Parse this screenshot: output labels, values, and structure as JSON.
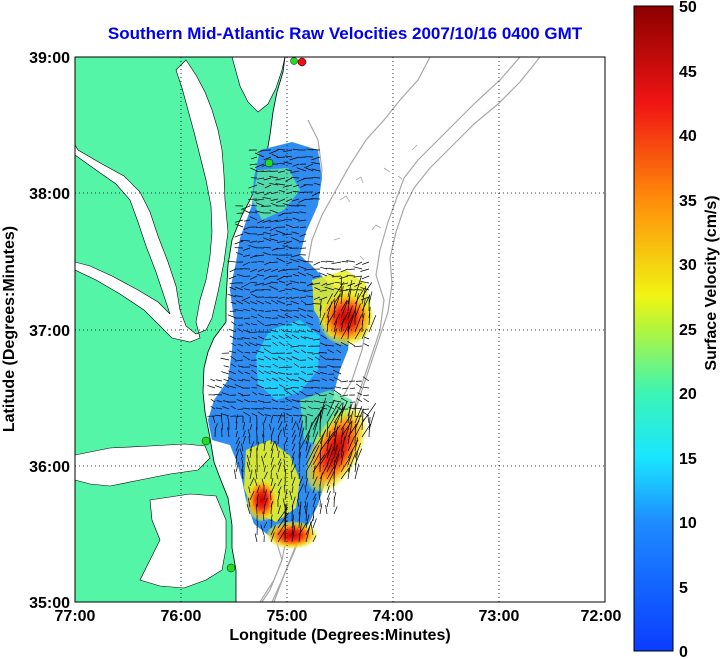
{
  "title": "Southern Mid-Atlantic Raw Velocities 2007/10/16 0400 GMT",
  "xlabel": "Longitude (Degrees:Minutes)",
  "ylabel": "Latitude (Degrees:Minutes)",
  "colorbar_label": "Surface Velocity (cm/s)",
  "x_ticks": [
    "77:00",
    "76:00",
    "75:00",
    "74:00",
    "73:00",
    "72:00"
  ],
  "y_ticks": [
    "39:00",
    "38:00",
    "37:00",
    "36:00",
    "35:00"
  ],
  "colorbar_ticks": [
    "0",
    "5",
    "10",
    "15",
    "20",
    "25",
    "30",
    "35",
    "40",
    "45",
    "50"
  ],
  "colors": {
    "title": "#0000ee",
    "land": "#55f5a8",
    "ocean": "#ffffff",
    "bathymetry": "#a8a8a8",
    "station_green": "#22dd22",
    "station_red": "#ee1111"
  },
  "map": {
    "lon_range": [
      -77,
      -72
    ],
    "lat_range": [
      35,
      39
    ],
    "velocity_range_cm_s": [
      0,
      50
    ],
    "grid": "dotted",
    "stations": [
      {
        "lon": -74.85,
        "lat": 38.95,
        "color": "red"
      },
      {
        "lon": -74.92,
        "lat": 38.93,
        "color": "green"
      },
      {
        "lon": -75.15,
        "lat": 38.23,
        "color": "green"
      },
      {
        "lon": -75.73,
        "lat": 36.19,
        "color": "green"
      },
      {
        "lon": -75.53,
        "lat": 35.23,
        "color": "green"
      }
    ],
    "hotspots": [
      {
        "lon": -74.4,
        "lat": 37.0,
        "speed": 45
      },
      {
        "lon": -74.4,
        "lat": 36.3,
        "speed": 42
      },
      {
        "lon": -74.7,
        "lat": 35.55,
        "speed": 43
      },
      {
        "lon": -75.15,
        "lat": 35.6,
        "speed": 38
      }
    ]
  }
}
